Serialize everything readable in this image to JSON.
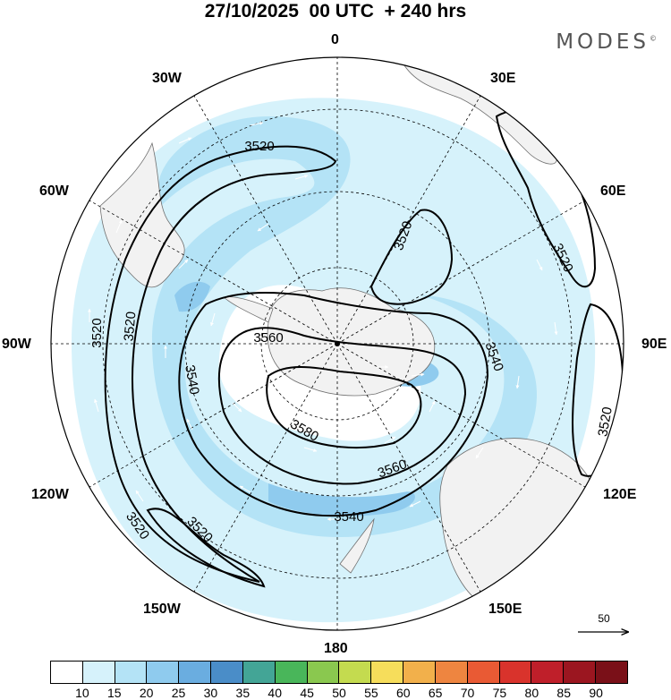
{
  "title": "27/10/2025  00 UTC  + 240 hrs",
  "brand": "MODES",
  "brand_mark": "©",
  "longitude_labels": {
    "lon_0": "0",
    "lon_30e": "30E",
    "lon_60e": "60E",
    "lon_90e": "90E",
    "lon_120e": "120E",
    "lon_150e": "150E",
    "lon_180": "180",
    "lon_150w": "150W",
    "lon_120w": "120W",
    "lon_90w": "90W",
    "lon_60w": "60W",
    "lon_30w": "30W"
  },
  "contour_labels": {
    "c3520_a": "3520",
    "c3520_b": "3520",
    "c3520_c": "3520",
    "c3520_d": "3520",
    "c3520_e": "3520",
    "c3520_f": "3520",
    "c3520_g": "3520",
    "c3520_h": "3520",
    "c3540_a": "3540",
    "c3540_b": "3540",
    "c3540_c": "3540",
    "c3560_a": "3560",
    "c3560_b": "3560",
    "c3580_a": "3580"
  },
  "reference_vector": {
    "value": "50"
  },
  "colorbar": {
    "ticks": [
      "10",
      "15",
      "20",
      "25",
      "30",
      "35",
      "40",
      "45",
      "50",
      "55",
      "60",
      "65",
      "70",
      "75",
      "80",
      "85",
      "90"
    ],
    "colors": [
      "#ffffff",
      "#d6f2fb",
      "#b4e3f6",
      "#8fcbee",
      "#6aade0",
      "#4a8dc8",
      "#43a596",
      "#49b65a",
      "#8ac84f",
      "#c4db4f",
      "#f6dd5b",
      "#f2b04b",
      "#ee8540",
      "#e95a34",
      "#d9332c",
      "#bf1f2a",
      "#9b1620",
      "#7a1018"
    ]
  },
  "chart_data": {
    "type": "map",
    "projection": "south polar stereographic",
    "field": "geopotential height contours with wind speed shading and wind vectors",
    "valid_time": "27/10/2025 00 UTC + 240 hrs",
    "contour_levels": [
      3520,
      3540,
      3560,
      3580
    ],
    "shading_levels": [
      10,
      15,
      20,
      25,
      30,
      35,
      40,
      45,
      50,
      55,
      60,
      65,
      70,
      75,
      80,
      85,
      90
    ],
    "reference_vector": 50
  }
}
